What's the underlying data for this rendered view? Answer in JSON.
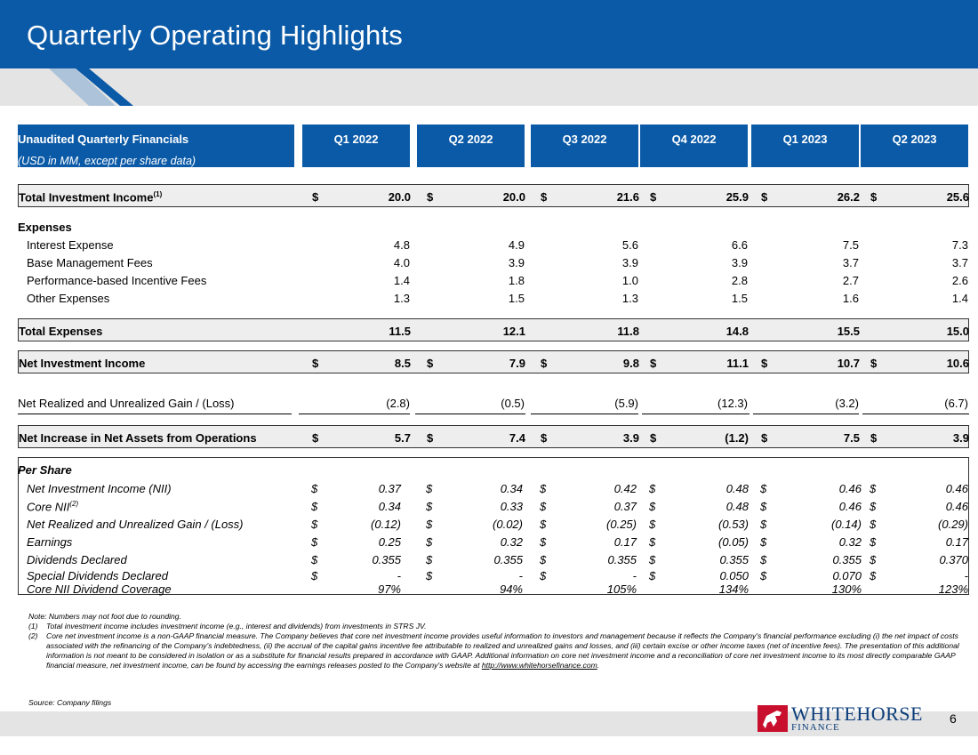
{
  "title": "Quarterly Operating Highlights",
  "table_header": {
    "label": "Unaudited Quarterly Financials",
    "sublabel": "(USD in MM, except per share data)",
    "quarters": [
      "Q1 2022",
      "Q2 2022",
      "Q3 2022",
      "Q4 2022",
      "Q1 2023",
      "Q2 2023"
    ]
  },
  "currency_symbol": "$",
  "rows": {
    "total_investment_income": {
      "label": "Total Investment Income",
      "sup": "(1)",
      "values": [
        "20.0",
        "20.0",
        "21.6",
        "25.9",
        "26.2",
        "25.6"
      ]
    },
    "expenses_heading": "Expenses",
    "interest_expense": {
      "label": "Interest Expense",
      "values": [
        "4.8",
        "4.9",
        "5.6",
        "6.6",
        "7.5",
        "7.3"
      ]
    },
    "base_management_fees": {
      "label": "Base Management Fees",
      "values": [
        "4.0",
        "3.9",
        "3.9",
        "3.9",
        "3.7",
        "3.7"
      ]
    },
    "incentive_fees": {
      "label": "Performance-based Incentive Fees",
      "values": [
        "1.4",
        "1.8",
        "1.0",
        "2.8",
        "2.7",
        "2.6"
      ]
    },
    "other_expenses": {
      "label": "Other Expenses",
      "values": [
        "1.3",
        "1.5",
        "1.3",
        "1.5",
        "1.6",
        "1.4"
      ]
    },
    "total_expenses": {
      "label": "Total Expenses",
      "values": [
        "11.5",
        "12.1",
        "11.8",
        "14.8",
        "15.5",
        "15.0"
      ]
    },
    "net_investment_income": {
      "label": "Net Investment Income",
      "values": [
        "8.5",
        "7.9",
        "9.8",
        "11.1",
        "10.7",
        "10.6"
      ]
    },
    "net_gain_loss": {
      "label": "Net Realized and Unrealized Gain / (Loss)",
      "values": [
        "(2.8)",
        "(0.5)",
        "(5.9)",
        "(12.3)",
        "(3.2)",
        "(6.7)"
      ]
    },
    "net_increase": {
      "label": "Net Increase in Net Assets from Operations",
      "values": [
        "5.7",
        "7.4",
        "3.9",
        "(1.2)",
        "7.5",
        "3.9"
      ]
    }
  },
  "per_share": {
    "heading": "Per Share",
    "nii": {
      "label": "Net Investment Income (NII)",
      "values": [
        "0.37",
        "0.34",
        "0.42",
        "0.48",
        "0.46",
        "0.46"
      ]
    },
    "core_nii": {
      "label": "Core NII",
      "sup": "(2)",
      "values": [
        "0.34",
        "0.33",
        "0.37",
        "0.48",
        "0.46",
        "0.46"
      ]
    },
    "gain_loss": {
      "label": "Net Realized and Unrealized Gain / (Loss)",
      "values": [
        "(0.12)",
        "(0.02)",
        "(0.25)",
        "(0.53)",
        "(0.14)",
        "(0.29)"
      ]
    },
    "earnings": {
      "label": "Earnings",
      "values": [
        "0.25",
        "0.32",
        "0.17",
        "(0.05)",
        "0.32",
        "0.17"
      ]
    },
    "dividends": {
      "label": "Dividends Declared",
      "values": [
        "0.355",
        "0.355",
        "0.355",
        "0.355",
        "0.355",
        "0.370"
      ]
    },
    "special_dividends": {
      "label": "Special Dividends Declared",
      "values": [
        "-",
        "-",
        "-",
        "0.050",
        "0.070",
        "-"
      ]
    },
    "coverage": {
      "label": "Core NII Dividend Coverage",
      "values": [
        "97%",
        "94%",
        "105%",
        "134%",
        "130%",
        "123%"
      ]
    }
  },
  "notes": {
    "note0": "Note: Numbers may not foot due to rounding.",
    "n1_key": "(1)",
    "n1": "Total investment income includes investment income (e.g., interest and dividends) from investments in STRS JV.",
    "n2_key": "(2)",
    "n2": "Core net investment income is a non-GAAP financial measure. The Company believes that core net investment income provides useful information to investors and management because it reflects the Company's financial performance excluding (i) the net impact of costs associated with the refinancing of the Company's indebtedness, (ii) the accrual of the capital gains incentive fee attributable to realized and unrealized gains and losses, and (iii) certain excise or other income taxes (net of incentive fees). The presentation of this additional information is not meant to be considered in isolation or as a substitute for financial results prepared in accordance with GAAP. Additional information on core net investment income and a reconciliation of core net investment income to its most directly comparable GAAP financial measure, net investment income, can be found by accessing the earnings releases posted to the Company's website at",
    "n2_link": "http://www.whitehorsefinance.com",
    "n2_end": "."
  },
  "source": "Source: Company filings",
  "logo": {
    "name": "WHITEHORSE",
    "sub": "FINANCE"
  },
  "page_number": "6",
  "colors": {
    "brand_blue": "#0b5aa7",
    "band_gray": "#e4e4e4",
    "logo_red": "#c8102e"
  }
}
